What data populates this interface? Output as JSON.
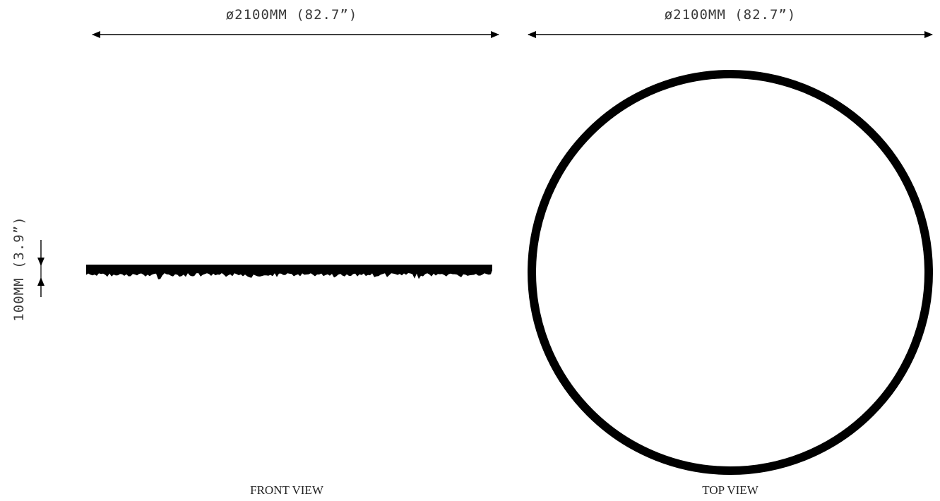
{
  "front_view": {
    "width_dimension": "ø2100MM (82.7”)",
    "height_dimension": "100MM (3.9”)",
    "label": "FRONT VIEW"
  },
  "top_view": {
    "diameter_dimension": "ø2100MM (82.7”)",
    "label": "TOP VIEW"
  },
  "colors": {
    "line": "#000000",
    "dimension_text": "#3a3a3a",
    "label_text": "#222222",
    "background": "#ffffff"
  }
}
